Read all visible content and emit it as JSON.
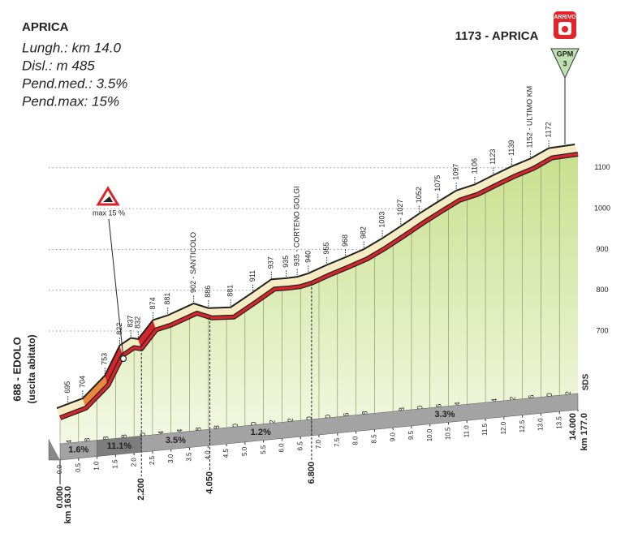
{
  "chart_data": {
    "type": "profile",
    "title": "APRICA",
    "info": [
      "Lungh.: km 14.0",
      "Disl.: m 485",
      "Pend.med.: 3.5%",
      "Pend.max: 15%"
    ],
    "start_note": "(uscita abitato)",
    "finish_badge": "ARRIVO",
    "climb_badge": {
      "label": "GPM",
      "category": 3
    },
    "max_gradient": "max 15 %",
    "x": [
      0,
      0.3,
      0.7,
      1.3,
      1.7,
      2.0,
      2.2,
      2.6,
      3.0,
      3.7,
      4.1,
      4.7,
      5.3,
      5.8,
      6.2,
      6.5,
      6.8,
      7.3,
      7.8,
      8.3,
      8.8,
      9.3,
      9.8,
      10.3,
      10.8,
      11.3,
      11.8,
      12.3,
      12.8,
      13.3,
      14.0
    ],
    "values": [
      688,
      695,
      704,
      753,
      822,
      837,
      832,
      874,
      881,
      902,
      886,
      881,
      911,
      937,
      935,
      935,
      940,
      955,
      968,
      982,
      1003,
      1027,
      1052,
      1075,
      1097,
      1106,
      1123,
      1139,
      1152,
      1172,
      1173
    ],
    "value_labels": [
      "688 - EDOLO",
      "695",
      "704",
      "753",
      "822",
      "837",
      "832",
      "874",
      "881",
      "902 - SANTICOLO",
      "886",
      "881",
      "911",
      "937",
      "935",
      "935 - CORTENO GOLGI",
      "940",
      "955",
      "968",
      "982",
      "1003",
      "1027",
      "1052",
      "1075",
      "1097",
      "1106",
      "1123",
      "1139",
      "1152 - ULTIMO KM",
      "1172",
      "1173 - APRICA"
    ],
    "color": "#d7262b",
    "xlim": [
      0,
      14
    ],
    "ylim": [
      480,
      1200
    ],
    "xticks": [
      {
        "value": 0,
        "label": "0.0"
      },
      0.5,
      {
        "value": 1,
        "label": "1.0"
      },
      1.5,
      {
        "value": 2,
        "label": "2.0"
      },
      2.5,
      {
        "value": 3,
        "label": "3.0"
      },
      3.5,
      {
        "value": 4,
        "label": "4.0"
      },
      4.5,
      {
        "value": 5,
        "label": "5.0"
      },
      5.5,
      {
        "value": 6,
        "label": "6.0"
      },
      6.5,
      {
        "value": 7,
        "label": "7.0"
      },
      7.5,
      {
        "value": 8,
        "label": "8.0"
      },
      8.5,
      {
        "value": 9,
        "label": "9.0"
      },
      9.5,
      {
        "value": 10,
        "label": "10.0"
      },
      10.5,
      {
        "value": 11,
        "label": "11.0"
      },
      11.5,
      {
        "value": 12,
        "label": "12.0"
      },
      12.5,
      {
        "value": 13,
        "label": "13.0"
      },
      13.5
    ],
    "yticks": [
      700,
      800,
      900,
      1000,
      1100
    ],
    "grid": true,
    "gradients": {
      "x": [
        0.25,
        0.75,
        1.25,
        1.75,
        2.25,
        2.75,
        3.25,
        3.75,
        4.25,
        4.75,
        5.25,
        5.75,
        6.25,
        6.75,
        7.25,
        7.75,
        8.25,
        9.25,
        9.75,
        10.25,
        10.75,
        11.75,
        12.25,
        12.75,
        13.25,
        13.75
      ],
      "values": [
        1.4,
        1.8,
        9.8,
        13.8,
        2,
        8.4,
        5.4,
        3.8,
        2.8,
        -1,
        6,
        5.2,
        4.2,
        -1,
        3,
        2.6,
        2.8,
        4.8,
        5,
        4.6,
        4.4,
        3.4,
        3.2,
        2.6,
        4,
        0.2
      ],
      "value_labels": [
        "1.4",
        "1.8",
        "9.8",
        "13.8",
        "2.0",
        "8.4",
        "5.4",
        "3.8",
        "2.8",
        "-1.0",
        "6.0",
        "5.2",
        "4.2",
        "-1.0",
        "3.0",
        "2.6",
        "2.8",
        "4.8",
        "5.0",
        "4.6",
        "4.4",
        "3.4",
        "3.2",
        "2.6",
        "4.0",
        "0.2"
      ]
    },
    "segments": {
      "bounds": [
        0,
        1,
        2.2,
        4.05,
        6.8,
        14
      ],
      "values": [
        1.6,
        11.1,
        3.5,
        1.2,
        3.3
      ],
      "value_labels": [
        "1.6%",
        "11.1%",
        "3.5%",
        "1.2%",
        "3.3%"
      ]
    },
    "km_marks": [
      {
        "value": 0,
        "label": "0.000"
      },
      {
        "value": 2.2,
        "label": "2.200"
      },
      {
        "value": 4.05,
        "label": "4.050"
      },
      {
        "value": 6.8,
        "label": "6.800"
      },
      {
        "value": 14,
        "label": "14.000"
      }
    ],
    "km_total": [
      "km 163.0",
      "km 177.0"
    ],
    "source": "SDS"
  }
}
